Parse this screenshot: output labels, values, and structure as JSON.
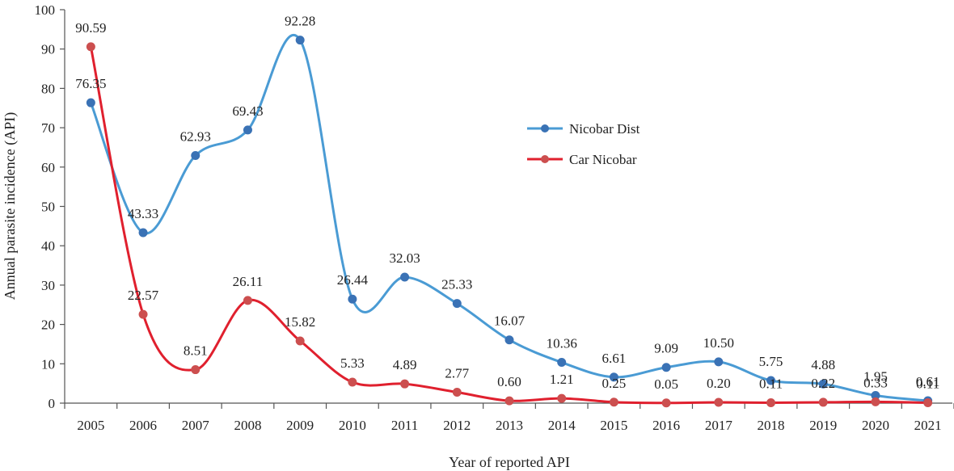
{
  "chart_data": {
    "type": "line",
    "title": "",
    "xlabel": "Year of reported API",
    "ylabel": "Annual parasite incidence (API)",
    "ylim": [
      0,
      100
    ],
    "yticks": [
      "0",
      "10",
      "20",
      "30",
      "40",
      "50",
      "60",
      "70",
      "80",
      "90",
      "100"
    ],
    "grid": false,
    "legend_position": "right",
    "categories": [
      "2005",
      "2006",
      "2007",
      "2008",
      "2009",
      "2010",
      "2011",
      "2012",
      "2013",
      "2014",
      "2015",
      "2016",
      "2017",
      "2018",
      "2019",
      "2020",
      "2021"
    ],
    "series": [
      {
        "name": "Nicobar Dist",
        "color": "#4a9bd4",
        "marker_color": "#3a72b5",
        "values": [
          76.35,
          43.33,
          62.93,
          69.43,
          92.28,
          26.44,
          32.03,
          25.33,
          16.07,
          10.36,
          6.61,
          9.09,
          10.5,
          5.75,
          4.88,
          1.95,
          0.61
        ],
        "labels": [
          "76.35",
          "43.33",
          "62.93",
          "69.43",
          "92.28",
          "26.44",
          "32.03",
          "25.33",
          "16.07",
          "10.36",
          "6.61",
          "9.09",
          "10.50",
          "5.75",
          "4.88",
          "1.95",
          "0.61"
        ]
      },
      {
        "name": "Car Nicobar",
        "color": "#e0202e",
        "marker_color": "#cc4f4f",
        "values": [
          90.59,
          22.57,
          8.51,
          26.11,
          15.82,
          5.33,
          4.89,
          2.77,
          0.6,
          1.21,
          0.25,
          0.05,
          0.2,
          0.11,
          0.22,
          0.33,
          0.11
        ],
        "labels": [
          "90.59",
          "22.57",
          "8.51",
          "26.11",
          "15.82",
          "5.33",
          "4.89",
          "2.77",
          "0.60",
          "1.21",
          "0.25",
          "0.05",
          "0.20",
          "0.11",
          "0.22",
          "0.33",
          "0.11"
        ]
      }
    ]
  }
}
